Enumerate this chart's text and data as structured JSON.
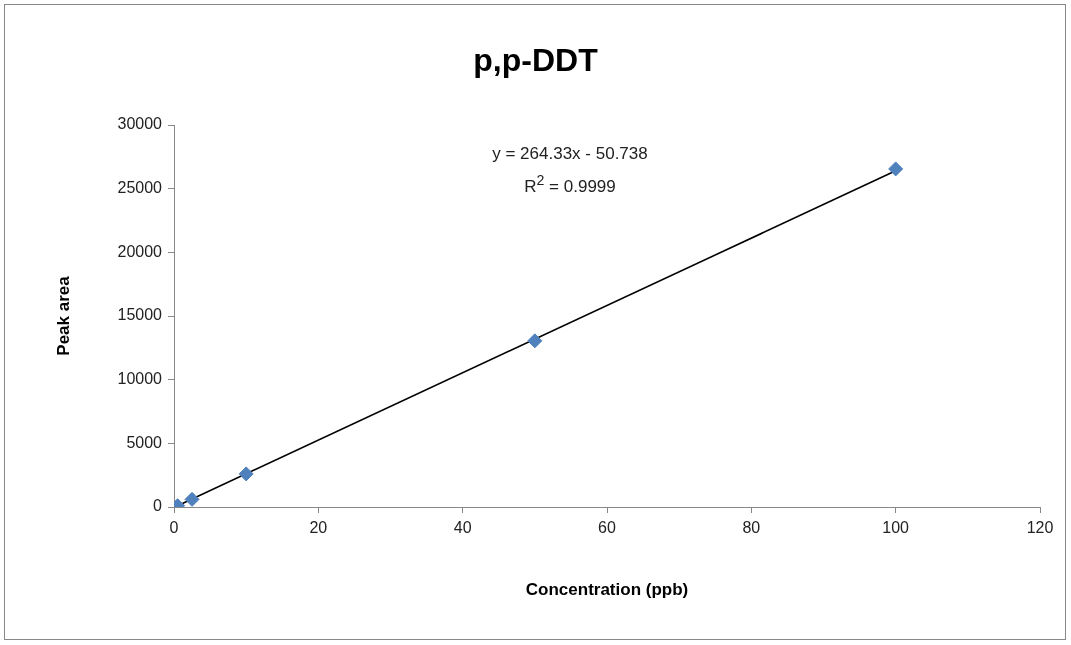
{
  "chart_data": {
    "type": "scatter",
    "title": "p,p-DDT",
    "xlabel": "Concentration (ppb)",
    "ylabel": "Peak area",
    "annotations": [
      "y = 264.33x - 50.738",
      "R$^{2}$ = 0.9999"
    ],
    "xlim": [
      0,
      120
    ],
    "xticks": [
      0,
      20,
      40,
      60,
      80,
      100,
      120
    ],
    "ylim": [
      0,
      30000
    ],
    "yticks": [
      0,
      5000,
      10000,
      15000,
      20000,
      25000,
      30000
    ],
    "grid": false,
    "legend": false,
    "marker": "diamond",
    "series": [
      {
        "color": "#4f81bd",
        "x": [
          0.5,
          2.5,
          10,
          50,
          100
        ],
        "values": [
          100,
          600,
          2600,
          13050,
          26550
        ]
      },
      {
        "type": "line",
        "color": "#000000",
        "x": [
          0.5,
          100
        ],
        "values": [
          100,
          26400
        ],
        "marker": "none",
        "line_style": "solid"
      }
    ]
  }
}
